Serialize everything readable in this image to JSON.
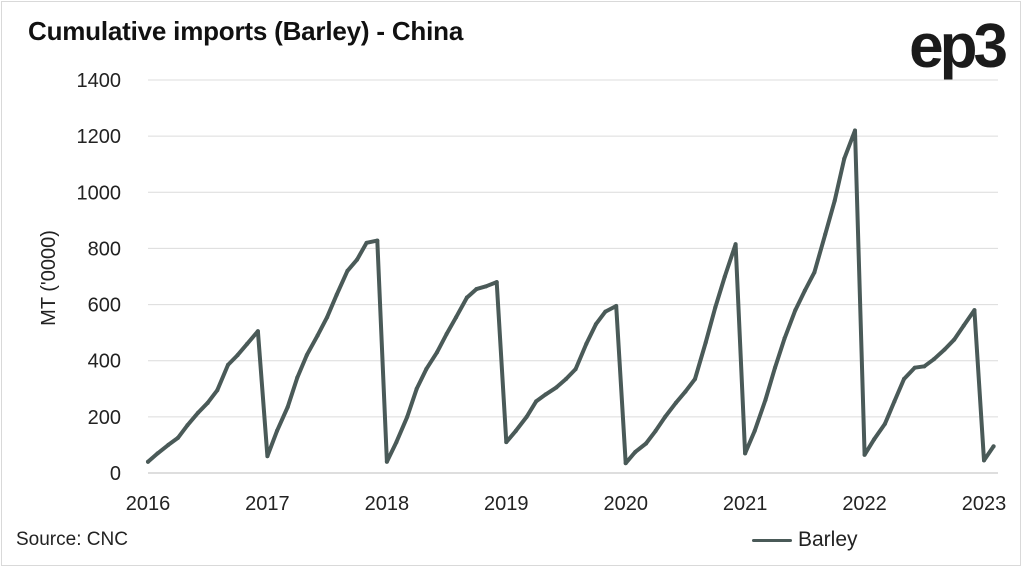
{
  "title": "Cumulative imports (Barley) - China",
  "logo": "ep3",
  "source": "Source: CNC",
  "legend": {
    "label": "Barley",
    "color": "#4a5a58"
  },
  "chart_data": {
    "type": "line",
    "title": "Cumulative imports (Barley) - China",
    "xlabel": "",
    "ylabel": "MT ('0000)",
    "x_range": [
      2016,
      2023.25
    ],
    "ylim": [
      0,
      1400
    ],
    "y_ticks": [
      0,
      200,
      400,
      600,
      800,
      1000,
      1200,
      1400
    ],
    "x_ticks": [
      2016,
      2017,
      2018,
      2019,
      2020,
      2021,
      2022,
      2023
    ],
    "x_tick_labels": [
      "2016",
      "2017",
      "2018",
      "2019",
      "2020",
      "2021",
      "2022",
      "2023"
    ],
    "grid": "horizontal",
    "legend_position": "bottom-right",
    "series": [
      {
        "name": "Barley",
        "color": "#4a5a58",
        "points": [
          [
            2016.0,
            40
          ],
          [
            2016.08,
            70
          ],
          [
            2016.17,
            100
          ],
          [
            2016.25,
            125
          ],
          [
            2016.33,
            170
          ],
          [
            2016.42,
            215
          ],
          [
            2016.5,
            250
          ],
          [
            2016.58,
            295
          ],
          [
            2016.67,
            385
          ],
          [
            2016.75,
            420
          ],
          [
            2016.83,
            460
          ],
          [
            2016.92,
            505
          ],
          [
            2017.0,
            60
          ],
          [
            2017.08,
            150
          ],
          [
            2017.17,
            235
          ],
          [
            2017.25,
            340
          ],
          [
            2017.33,
            420
          ],
          [
            2017.42,
            490
          ],
          [
            2017.5,
            555
          ],
          [
            2017.58,
            635
          ],
          [
            2017.67,
            720
          ],
          [
            2017.75,
            760
          ],
          [
            2017.83,
            820
          ],
          [
            2017.92,
            828
          ],
          [
            2018.0,
            40
          ],
          [
            2018.08,
            110
          ],
          [
            2018.17,
            200
          ],
          [
            2018.25,
            300
          ],
          [
            2018.33,
            370
          ],
          [
            2018.42,
            430
          ],
          [
            2018.5,
            495
          ],
          [
            2018.58,
            555
          ],
          [
            2018.67,
            625
          ],
          [
            2018.75,
            655
          ],
          [
            2018.83,
            665
          ],
          [
            2018.92,
            680
          ],
          [
            2019.0,
            110
          ],
          [
            2019.08,
            150
          ],
          [
            2019.17,
            200
          ],
          [
            2019.25,
            255
          ],
          [
            2019.33,
            280
          ],
          [
            2019.42,
            305
          ],
          [
            2019.5,
            335
          ],
          [
            2019.58,
            370
          ],
          [
            2019.67,
            460
          ],
          [
            2019.75,
            530
          ],
          [
            2019.83,
            575
          ],
          [
            2019.92,
            595
          ],
          [
            2020.0,
            35
          ],
          [
            2020.08,
            75
          ],
          [
            2020.17,
            105
          ],
          [
            2020.25,
            150
          ],
          [
            2020.33,
            200
          ],
          [
            2020.42,
            250
          ],
          [
            2020.5,
            290
          ],
          [
            2020.58,
            335
          ],
          [
            2020.67,
            465
          ],
          [
            2020.75,
            590
          ],
          [
            2020.83,
            700
          ],
          [
            2020.92,
            815
          ],
          [
            2021.0,
            70
          ],
          [
            2021.08,
            150
          ],
          [
            2021.17,
            260
          ],
          [
            2021.25,
            375
          ],
          [
            2021.33,
            480
          ],
          [
            2021.42,
            580
          ],
          [
            2021.5,
            650
          ],
          [
            2021.58,
            715
          ],
          [
            2021.67,
            850
          ],
          [
            2021.75,
            970
          ],
          [
            2021.83,
            1120
          ],
          [
            2021.92,
            1220
          ],
          [
            2022.0,
            65
          ],
          [
            2022.08,
            120
          ],
          [
            2022.17,
            175
          ],
          [
            2022.25,
            255
          ],
          [
            2022.33,
            335
          ],
          [
            2022.42,
            375
          ],
          [
            2022.5,
            380
          ],
          [
            2022.58,
            405
          ],
          [
            2022.67,
            440
          ],
          [
            2022.75,
            475
          ],
          [
            2022.83,
            525
          ],
          [
            2022.92,
            580
          ],
          [
            2023.0,
            45
          ],
          [
            2023.08,
            95
          ]
        ]
      }
    ]
  }
}
